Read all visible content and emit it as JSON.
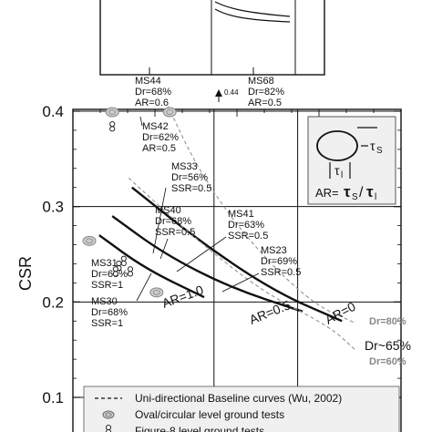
{
  "chart_data": {
    "type": "line",
    "ylabel": "CSR",
    "ylim": [
      0.1,
      0.4
    ],
    "yticks": [
      "0.4",
      "0.3",
      "0.2",
      "0.1"
    ],
    "grid": true,
    "series": [
      {
        "name": "AR=0",
        "style": "solid",
        "points": [
          [
            0.18,
            0.32
          ],
          [
            0.4,
            0.26
          ],
          [
            0.62,
            0.21
          ],
          [
            0.82,
            0.18
          ]
        ]
      },
      {
        "name": "AR=0.5",
        "style": "solid",
        "points": [
          [
            0.12,
            0.29
          ],
          [
            0.28,
            0.25
          ],
          [
            0.48,
            0.215
          ],
          [
            0.7,
            0.19
          ]
        ]
      },
      {
        "name": "AR=1.0",
        "style": "solid",
        "points": [
          [
            0.08,
            0.27
          ],
          [
            0.22,
            0.235
          ],
          [
            0.4,
            0.205
          ]
        ]
      },
      {
        "name": "Dr=80%",
        "style": "dashed",
        "points": [
          [
            0.29,
            0.405
          ],
          [
            0.38,
            0.34
          ],
          [
            0.52,
            0.27
          ],
          [
            0.72,
            0.2
          ],
          [
            0.86,
            0.178
          ]
        ]
      },
      {
        "name": "Dr=60%",
        "style": "dashed",
        "points": [
          [
            0.17,
            0.33
          ],
          [
            0.36,
            0.27
          ],
          [
            0.58,
            0.21
          ],
          [
            0.78,
            0.175
          ],
          [
            0.86,
            0.15
          ]
        ]
      }
    ],
    "curve_labels": {
      "ar0": "AR=0",
      "ar05": "AR=0.5",
      "ar10": "AR=1.0",
      "dr80": "Dr=80%",
      "dr65": "Dr~65%",
      "dr60": "Dr=60%"
    },
    "tests": [
      {
        "id": "MS44",
        "line1": "MS44",
        "line2": "Dr=68%",
        "line3": "AR=0.6",
        "x": 0.12,
        "y": 0.399,
        "marker": "oval"
      },
      {
        "id": "MS68",
        "line1": "MS68",
        "line2": "Dr=82%",
        "line3": "AR=0.5",
        "x": 0.295,
        "y": 0.399,
        "marker": "oval"
      },
      {
        "id": "MS42",
        "line1": "MS42",
        "line2": "Dr=62%",
        "line3": "AR=0.5",
        "x": 0.12,
        "y": 0.384,
        "marker": "fig8"
      },
      {
        "id": "MS33",
        "line1": "MS33",
        "line2": "Dr=56%",
        "line3": "SSR=0.5",
        "x": 0.155,
        "y": 0.243,
        "marker": "fig8"
      },
      {
        "id": "MS40",
        "line1": "MS40",
        "line2": "Dr=68%",
        "line3": "SSR=0.5",
        "x": 0.14,
        "y": 0.238,
        "marker": "fig8"
      },
      {
        "id": "MS41",
        "line1": "MS41",
        "line2": "Dr=63%",
        "line3": "SSR=0.5",
        "x": 0.175,
        "y": 0.232,
        "marker": "fig8"
      },
      {
        "id": "MS31",
        "line1": "MS31",
        "line2": "Dr=65%",
        "line3": "SSR=1",
        "x": 0.05,
        "y": 0.264,
        "marker": "oval"
      },
      {
        "id": "MS30",
        "line1": "MS30",
        "line2": "Dr=68%",
        "line3": "SSR=1",
        "x": 0.13,
        "y": 0.232,
        "marker": "fig8"
      },
      {
        "id": "MS23",
        "line1": "MS23",
        "line2": "Dr=69%",
        "line3": "SSR=0.5",
        "x": 0.255,
        "y": 0.21,
        "marker": "oval"
      }
    ],
    "arrow_value": "0.44",
    "inset": {
      "tau_s": "τ",
      "tau_s_sub": "S",
      "tau_l": "τ",
      "tau_l_sub": "l",
      "ar_prefix": "AR=",
      "tau_s_ratio": "τ",
      "ratio_s_sub": "S",
      "slash": "/",
      "tau_l_ratio": "τ",
      "ratio_l_sub": "l"
    },
    "legend": [
      {
        "label": "Uni-directional Baseline curves (Wu, 2002)",
        "marker": "dashed-line"
      },
      {
        "label": "Oval/circular level ground tests",
        "marker": "oval"
      },
      {
        "label": "Figure-8 level ground tests",
        "marker": "fig8"
      }
    ],
    "colors": {
      "gray_curve": "#9a9a9a",
      "marker": "#888888",
      "box_fill": "#f0f0f0"
    }
  }
}
